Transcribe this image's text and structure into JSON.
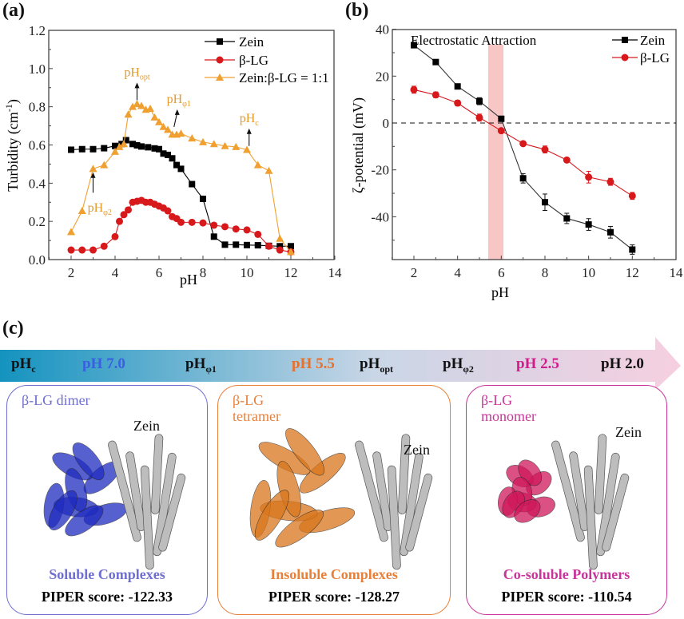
{
  "chart_data": [
    {
      "type": "line",
      "panel": "(a)",
      "title": "",
      "xlabel": "pH",
      "ylabel": "Turbidity (cm-1)",
      "xlim": [
        1,
        14
      ],
      "ylim": [
        0,
        1.2
      ],
      "xticks": [
        "2",
        "4",
        "6",
        "8",
        "10",
        "12",
        "14"
      ],
      "yticks": [
        "0.0",
        "0.2",
        "0.4",
        "0.6",
        "0.8",
        "1.0",
        "1.2"
      ],
      "grid": false,
      "legend_position": "top-right",
      "series": [
        {
          "name": "Zein",
          "marker": "square",
          "color": "#000000",
          "x": [
            2,
            2.5,
            3,
            3.5,
            4,
            4.3,
            4.5,
            4.8,
            5,
            5.2,
            5.5,
            5.8,
            6,
            6.2,
            6.4,
            6.6,
            6.8,
            7,
            7.5,
            8,
            8.5,
            9,
            9.5,
            10,
            10.5,
            11,
            11.5,
            12
          ],
          "y": [
            0.575,
            0.578,
            0.578,
            0.583,
            0.595,
            0.605,
            0.625,
            0.605,
            0.598,
            0.592,
            0.588,
            0.582,
            0.578,
            0.555,
            0.548,
            0.53,
            0.495,
            0.475,
            0.395,
            0.318,
            0.12,
            0.078,
            0.078,
            0.076,
            0.075,
            0.072,
            0.07,
            0.07
          ]
        },
        {
          "name": "β-LG",
          "marker": "circle",
          "color": "#d7191c",
          "x": [
            2,
            2.5,
            3,
            3.5,
            4,
            4.2,
            4.4,
            4.6,
            4.8,
            5,
            5.2,
            5.4,
            5.6,
            5.8,
            6,
            6.2,
            6.4,
            6.6,
            6.8,
            7,
            7.5,
            8,
            8.5,
            9,
            9.5,
            10,
            10.5,
            11,
            11.5,
            12
          ],
          "y": [
            0.05,
            0.05,
            0.05,
            0.07,
            0.12,
            0.2,
            0.235,
            0.26,
            0.3,
            0.305,
            0.31,
            0.3,
            0.3,
            0.29,
            0.28,
            0.27,
            0.255,
            0.225,
            0.215,
            0.195,
            0.195,
            0.192,
            0.18,
            0.172,
            0.16,
            0.155,
            0.132,
            0.07,
            0.05,
            0.04
          ]
        },
        {
          "name": "Zein:β-LG = 1:1",
          "marker": "triangle",
          "color": "#f0a030",
          "x": [
            2,
            2.5,
            3,
            3.5,
            4,
            4.2,
            4.4,
            4.6,
            4.8,
            5,
            5.2,
            5.4,
            5.6,
            5.8,
            6,
            6.2,
            6.4,
            6.6,
            6.8,
            7,
            7.5,
            8,
            8.5,
            9,
            9.5,
            10,
            10.5,
            11,
            11.5,
            12
          ],
          "y": [
            0.145,
            0.255,
            0.475,
            0.495,
            0.565,
            0.59,
            0.605,
            0.76,
            0.8,
            0.815,
            0.805,
            0.785,
            0.79,
            0.745,
            0.72,
            0.695,
            0.68,
            0.655,
            0.655,
            0.66,
            0.635,
            0.615,
            0.605,
            0.595,
            0.59,
            0.575,
            0.495,
            0.465,
            0.11,
            0.04
          ]
        }
      ],
      "annotations": [
        {
          "text": "pH",
          "sub": "opt",
          "x": 5,
          "y": 0.96,
          "arrow_to": [
            5,
            0.84
          ]
        },
        {
          "text": "pH",
          "sub": "φ1",
          "x": 6.9,
          "y": 0.82,
          "arrow_to": [
            6.6,
            0.7
          ]
        },
        {
          "text": "pH",
          "sub": "c",
          "x": 10.1,
          "y": 0.72,
          "arrow_to": [
            10.1,
            0.6
          ]
        },
        {
          "text": "pH",
          "sub": "φ2",
          "x": 3.3,
          "y": 0.25,
          "arrow_to": [
            3,
            0.44
          ]
        }
      ]
    },
    {
      "type": "line",
      "panel": "(b)",
      "title": "",
      "xlabel": "pH",
      "ylabel": "ζ-potential (mV)",
      "xlim": [
        1,
        14
      ],
      "ylim": [
        -58,
        40
      ],
      "xticks": [
        "2",
        "4",
        "6",
        "8",
        "10",
        "12",
        "14"
      ],
      "yticks": [
        "-40",
        "-20",
        "0",
        "20",
        "40"
      ],
      "grid": false,
      "legend_position": "top-right",
      "reference_line": {
        "y": 0,
        "style": "dashed"
      },
      "shaded_region": {
        "x_from": 5.4,
        "x_to": 6.1,
        "color": "#f9c6c6",
        "label": "Electrostatic Attraction"
      },
      "series": [
        {
          "name": "Zein",
          "marker": "square",
          "color": "#000000",
          "x": [
            2,
            3,
            4,
            5,
            6,
            7,
            8,
            9,
            10,
            11,
            12
          ],
          "y": [
            33.2,
            26,
            15.6,
            9.3,
            1.8,
            -23.6,
            -33.8,
            -40.7,
            -43.3,
            -46.6,
            -54
          ],
          "error": [
            1.2,
            1,
            1,
            1.5,
            1,
            2,
            3.5,
            2.2,
            2.5,
            2.5,
            2
          ]
        },
        {
          "name": "β-LG",
          "marker": "circle",
          "color": "#d7191c",
          "x": [
            2,
            3,
            4,
            5,
            6,
            7,
            8,
            9,
            10,
            11,
            12
          ],
          "y": [
            14.2,
            12,
            8.5,
            2.3,
            -3.3,
            -8.8,
            -11.3,
            -15.8,
            -23.1,
            -25.1,
            -31.1
          ],
          "error": [
            1.5,
            1.2,
            1.2,
            1.5,
            0.8,
            0.8,
            1.5,
            0.8,
            2.5,
            1.5,
            1.5
          ]
        }
      ]
    }
  ],
  "figure": {
    "labels": {
      "a": "(a)",
      "b": "(b)",
      "c": "(c)"
    },
    "legend_a": [
      "Zein",
      "β-LG",
      "Zein:β-LG = 1:1"
    ],
    "legend_b": [
      "Zein",
      "β-LG"
    ],
    "electrostatic_label": "Electrostatic Attraction",
    "ylabel_a": "Turbidity (cm",
    "ylabel_a_sup": "-1",
    "ylabel_a_end": ")",
    "ylabel_b": "ζ-potential (mV)",
    "xlabel": "pH"
  },
  "banner": {
    "items": [
      {
        "base": "pH",
        "sub": "c",
        "color": "#111111"
      },
      {
        "base": "pH 7.0",
        "sub": "",
        "color": "#3a5fe0"
      },
      {
        "base": "pH",
        "sub": "φ1",
        "color": "#111111"
      },
      {
        "base": "pH 5.5",
        "sub": "",
        "color": "#e8702a"
      },
      {
        "base": "pH",
        "sub": "opt",
        "color": "#111111"
      },
      {
        "base": "pH",
        "sub": "φ2",
        "color": "#111111"
      },
      {
        "base": "pH 2.5",
        "sub": "",
        "color": "#d11c8c"
      },
      {
        "base": "pH 2.0",
        "sub": "",
        "color": "#111111"
      }
    ],
    "gradient_start": "#1493bf",
    "gradient_mid": "#c9d6e6",
    "gradient_end": "#f6cfe0"
  },
  "boxes": [
    {
      "title": "β-LG dimer",
      "title_line2": "",
      "zein": "Zein",
      "category": "Soluble Complexes",
      "score": "PIPER score: -122.33",
      "color": "#6f6fd0",
      "mol_color": "#1f2bbf"
    },
    {
      "title": "β-LG",
      "title_line2": "tetramer",
      "zein": "Zein",
      "category": "Insoluble Complexes",
      "score": "PIPER score: -128.27",
      "color": "#e8803a",
      "mol_color": "#d9761c"
    },
    {
      "title": "β-LG",
      "title_line2": "monomer",
      "zein": "Zein",
      "category": "Co-soluble Polymers",
      "score": "PIPER score: -110.54",
      "color": "#c8359a",
      "mol_color": "#d0185a"
    }
  ]
}
